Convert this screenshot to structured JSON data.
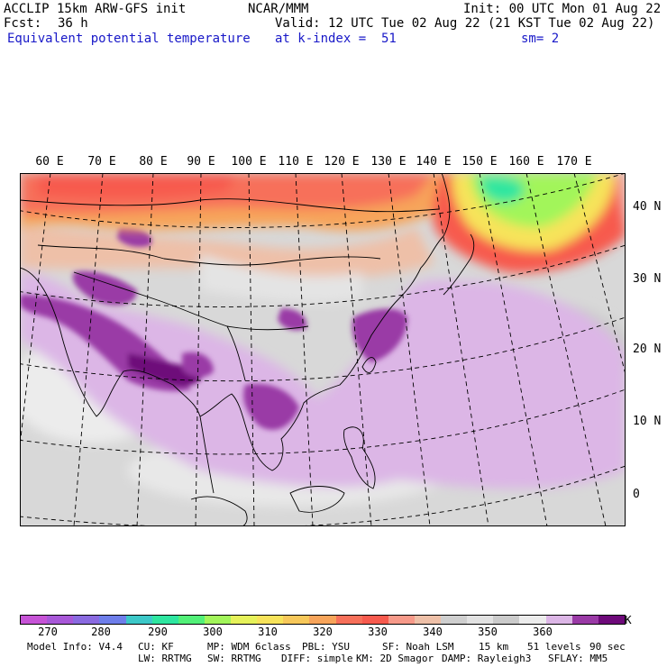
{
  "header": {
    "model": "ACCLIP 15km ARW-GFS init",
    "org": "NCAR/MMM",
    "init": "Init: 00 UTC Mon 01 Aug 22",
    "fcst_label": "Fcst:",
    "fcst_value": "36 h",
    "valid": "Valid: 12 UTC Tue 02 Aug 22 (21 KST Tue 02 Aug 22)",
    "field": "Equivalent potential temperature",
    "level": "at k-index =  51",
    "smooth": "sm= 2"
  },
  "map": {
    "lon_labels": [
      "60 E",
      "70 E",
      "80 E",
      "90 E",
      "100 E",
      "110 E",
      "120 E",
      "130 E",
      "140 E",
      "150 E",
      "160 E",
      "170 E"
    ],
    "lat_labels": [
      "40 N",
      "30 N",
      "20 N",
      "10 N",
      "0"
    ]
  },
  "colorbar": {
    "colors": [
      "#c653d6",
      "#a858d8",
      "#8a6ae0",
      "#6e7eea",
      "#3cc8c8",
      "#2ee6a0",
      "#52f078",
      "#a2f55a",
      "#e6f25a",
      "#f7e35a",
      "#f7c85a",
      "#f7a45a",
      "#f7705a",
      "#f75a4e",
      "#f79a8a",
      "#eec0a8",
      "#cfcfcf",
      "#e2e2e2",
      "#cbcbcb",
      "#ececec",
      "#dcb6e6",
      "#9a3aa6",
      "#6e0a7a"
    ],
    "labels": [
      "270",
      "280",
      "290",
      "300",
      "310",
      "320",
      "330",
      "340",
      "350",
      "360"
    ],
    "unit": "K"
  },
  "footer": {
    "line1": [
      "Model Info: V4.4",
      "CU: KF",
      "MP: WDM 6class",
      "PBL: YSU",
      "SF: Noah LSM",
      "15 km",
      "51 levels",
      "90 sec"
    ],
    "line2": [
      "LW: RRTMG",
      "SW: RRTMG",
      "DIFF: simple",
      "KM: 2D Smagor",
      "DAMP: Rayleigh3",
      "SFLAY: MM5"
    ]
  }
}
